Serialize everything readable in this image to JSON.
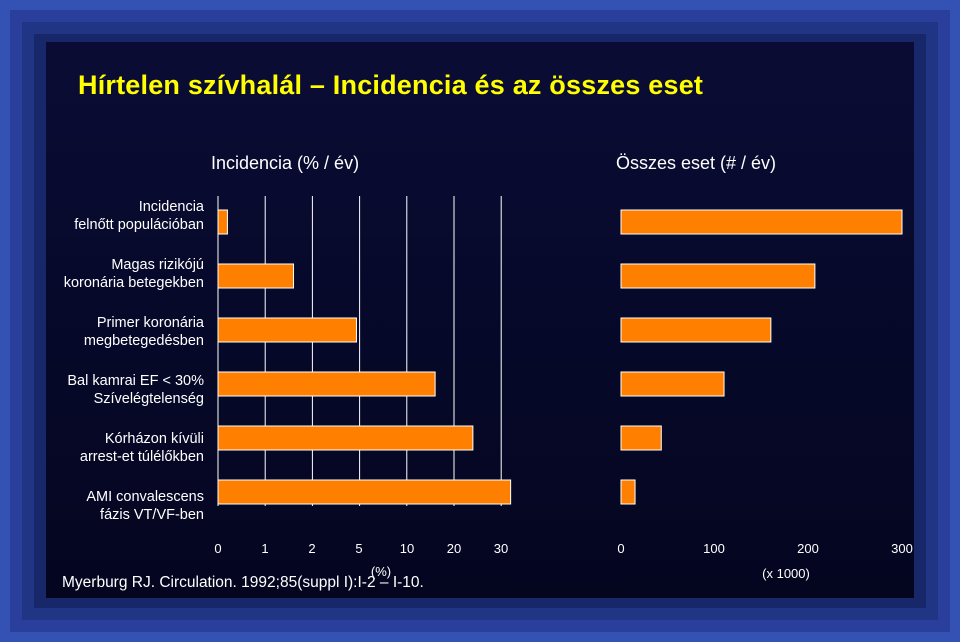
{
  "title": "Hírtelen szívhalál – Incidencia és az összes eset",
  "colors": {
    "bar": "#ff8000",
    "bar_edge": "#ffffff",
    "title": "#ffff00",
    "grid": "#ffffff"
  },
  "reference": "Myerburg RJ. Circulation. 1992;85(suppl I):I-2 – I-10.",
  "chart_data": [
    {
      "type": "bar",
      "orientation": "horizontal",
      "title": "Incidencia (% / év)",
      "xlabel": "(%)",
      "x_scale": "nonlinear",
      "tick_labels": [
        "0",
        "1",
        "2",
        "5",
        "10",
        "20",
        "30"
      ],
      "categories": [
        "Incidencia felnőtt populációban",
        "Magas rizikójú koronária betegekben",
        "Primer koronária megbetegedésben",
        "Bal kamrai EF < 30% Szívelégtelenség",
        "Kórházon kívüli arrest-et túlélőkben",
        "AMI convalescens fázis VT/VF-ben"
      ],
      "values": [
        0.2,
        1.6,
        4.8,
        16,
        24,
        32
      ],
      "grid": true
    },
    {
      "type": "bar",
      "orientation": "horizontal",
      "title": "Összes eset (# / év)",
      "xlabel": "(x 1000)",
      "xlim": [
        0,
        300
      ],
      "tick_labels": [
        "0",
        "100",
        "200",
        "300"
      ],
      "categories": [
        "Incidencia felnőtt populációban",
        "Magas rizikójú koronária betegekben",
        "Primer koronária megbetegedésben",
        "Bal kamrai EF < 30% Szívelégtelenség",
        "Kórházon kívüli arrest-et túlélőkben",
        "AMI convalescens fázis VT/VF-ben"
      ],
      "values": [
        300,
        207,
        160,
        110,
        43,
        15
      ],
      "grid": false
    }
  ],
  "category_lines": [
    [
      "Incidencia",
      "felnőtt populációban"
    ],
    [
      "Magas rizikójú",
      "koronária betegekben"
    ],
    [
      "Primer koronária",
      "megbetegedésben"
    ],
    [
      "Bal kamrai EF < 30%",
      "Szívelégtelenség"
    ],
    [
      "Kórházon kívüli",
      "arrest-et túlélőkben"
    ],
    [
      "AMI convalescens",
      "fázis  VT/VF-ben"
    ]
  ]
}
